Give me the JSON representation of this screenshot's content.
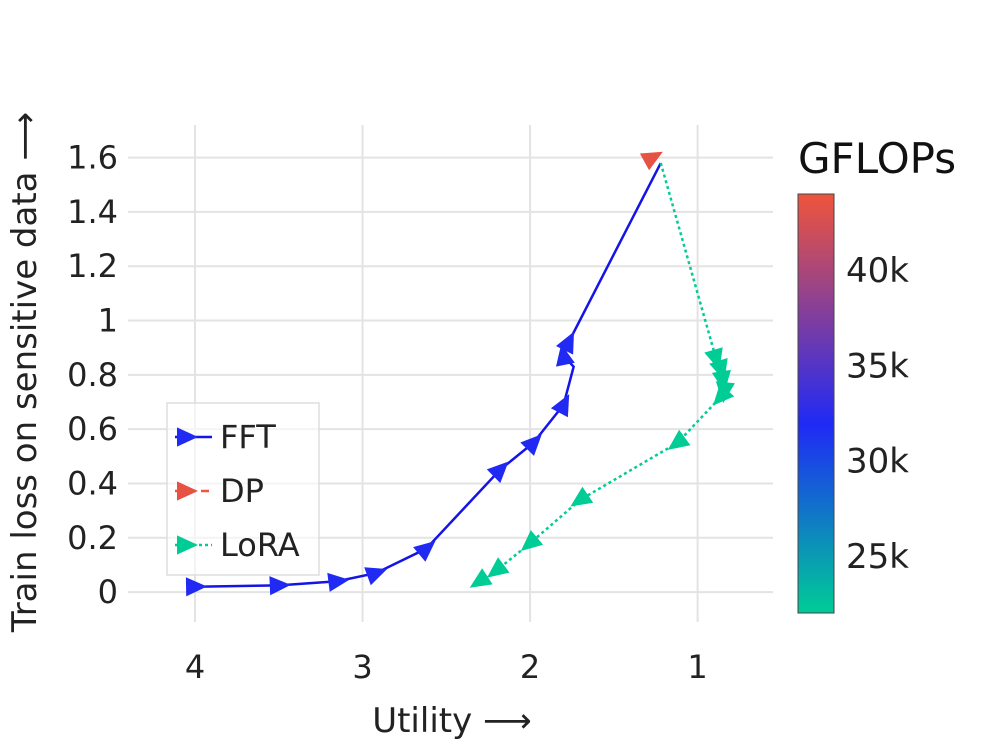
{
  "chart_data": {
    "type": "line",
    "xlabel": "Utility ⟶",
    "ylabel": "Train loss on sensitive data ⟶",
    "x_axis": {
      "reversed": true,
      "xlim": [
        4.4,
        0.55
      ],
      "ticks": [
        4,
        3,
        2,
        1
      ],
      "tick_labels": [
        "4",
        "3",
        "2",
        "1"
      ]
    },
    "y_axis": {
      "ylim": [
        -0.11,
        1.72
      ],
      "ticks": [
        0,
        0.2,
        0.4,
        0.6,
        0.8,
        1,
        1.2,
        1.4,
        1.6
      ],
      "tick_labels": [
        "0",
        "0.2",
        "0.4",
        "0.6",
        "0.8",
        "1",
        "1.2",
        "1.4",
        "1.6"
      ]
    },
    "grid": true,
    "legend_position": "bottom-left",
    "colorbar": {
      "title": "GFLOPs",
      "range": [
        22000,
        44000
      ],
      "ticks": [
        25000,
        30000,
        35000,
        40000
      ],
      "tick_labels": [
        "25k",
        "30k",
        "35k",
        "40k"
      ],
      "colors": [
        "#00cc96",
        "#1f2af5",
        "#ef553b"
      ]
    },
    "series": [
      {
        "name": "FFT",
        "line_color": "#1414e6",
        "line_style": "solid",
        "x": [
          4.0,
          3.5,
          3.15,
          2.92,
          2.62,
          2.18,
          1.98,
          1.8,
          1.74,
          1.8,
          1.77,
          1.22
        ],
        "y": [
          0.02,
          0.025,
          0.04,
          0.07,
          0.16,
          0.45,
          0.55,
          0.69,
          0.83,
          0.87,
          0.92,
          1.58
        ],
        "gflops": [
          32000,
          32000,
          32000,
          32000,
          32000,
          32000,
          32000,
          32000,
          32000,
          32000,
          32000,
          32000
        ],
        "markers": [
          true,
          true,
          true,
          true,
          true,
          true,
          true,
          true,
          false,
          true,
          true,
          false
        ]
      },
      {
        "name": "DP",
        "line_color": "#ef553b",
        "line_style": "dashed",
        "x": [
          1.27
        ],
        "y": [
          1.6
        ],
        "gflops": [
          43500
        ],
        "markers": [
          true
        ]
      },
      {
        "name": "LoRA",
        "line_color": "#00cc96",
        "line_style": "dotted",
        "x": [
          1.22,
          0.89,
          0.86,
          0.85,
          0.84,
          0.86,
          1.12,
          1.7,
          2.0,
          2.2,
          2.3
        ],
        "y": [
          1.58,
          0.86,
          0.82,
          0.78,
          0.74,
          0.72,
          0.55,
          0.34,
          0.18,
          0.08,
          0.04
        ],
        "gflops": [
          22000,
          22000,
          22000,
          22000,
          22000,
          22000,
          22000,
          22000,
          22000,
          22000,
          22000
        ],
        "markers": [
          false,
          true,
          true,
          true,
          true,
          true,
          true,
          true,
          true,
          true,
          true
        ]
      }
    ]
  }
}
